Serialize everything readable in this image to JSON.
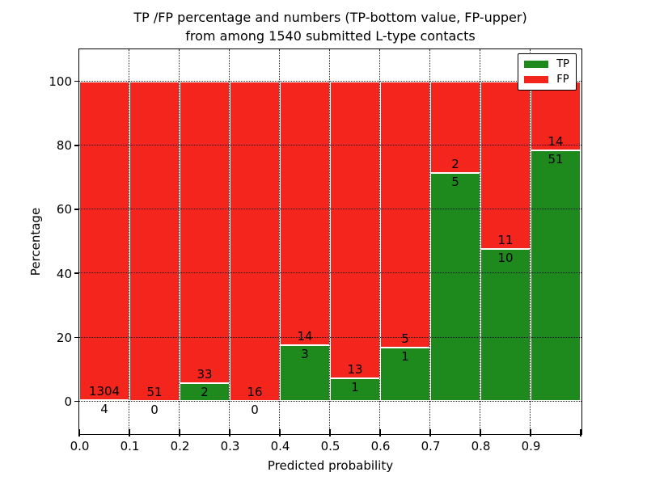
{
  "title": {
    "line1": "TP /FP percentage and numbers (TP-bottom value, FP-upper)",
    "line2": "from among 1540 submitted L-type contacts"
  },
  "chart_data": {
    "type": "bar",
    "stacked": true,
    "percent_normalized": true,
    "title": "TP /FP percentage and numbers (TP-bottom value, FP-upper) from among 1540 submitted L-type contacts",
    "xlabel": "Predicted probability",
    "ylabel": "Percentage",
    "total_contacts": 1540,
    "bins": [
      "0.0-0.1",
      "0.1-0.2",
      "0.2-0.3",
      "0.3-0.4",
      "0.4-0.5",
      "0.5-0.6",
      "0.6-0.7",
      "0.7-0.8",
      "0.8-0.9",
      "0.9-1.0"
    ],
    "x_tick_labels": [
      "0.0",
      "0.1",
      "0.2",
      "0.3",
      "0.4",
      "0.5",
      "0.6",
      "0.7",
      "0.8",
      "0.9"
    ],
    "y_tick_labels": [
      "0",
      "20",
      "40",
      "60",
      "80",
      "100"
    ],
    "y_tick_values": [
      0,
      20,
      40,
      60,
      80,
      100
    ],
    "xlim": [
      0.0,
      1.0
    ],
    "ylim": [
      -10,
      110
    ],
    "grid": true,
    "grid_color": "#000000",
    "bar_edge_color": "#ffffff",
    "series": [
      {
        "name": "TP",
        "color": "#1e8a1e",
        "counts": [
          4,
          0,
          2,
          0,
          3,
          1,
          1,
          5,
          10,
          51
        ]
      },
      {
        "name": "FP",
        "color": "#f3251c",
        "counts": [
          1304,
          51,
          33,
          16,
          14,
          13,
          5,
          2,
          11,
          14
        ]
      }
    ],
    "tp_percent_heights": [
      0.31,
      0.0,
      5.71,
      0.0,
      17.65,
      7.14,
      16.67,
      71.43,
      47.62,
      78.46
    ],
    "legend": {
      "position": "upper right",
      "entries": [
        "TP",
        "FP"
      ]
    }
  }
}
